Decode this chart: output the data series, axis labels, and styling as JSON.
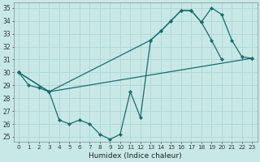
{
  "xlabel": "Humidex (Indice chaleur)",
  "bg_color": "#c8e8e8",
  "line_color": "#1a6b6b",
  "grid_color": "#b0d8d8",
  "line1_x": [
    0,
    1,
    2,
    3,
    4,
    5,
    6,
    7,
    8,
    9,
    10,
    11,
    12,
    13,
    14,
    15,
    16,
    17,
    18,
    19,
    20
  ],
  "line1_y": [
    30.0,
    29.0,
    28.8,
    28.5,
    26.3,
    26.0,
    26.3,
    26.0,
    25.2,
    24.8,
    25.2,
    28.5,
    26.5,
    32.5,
    33.2,
    34.0,
    34.8,
    34.8,
    33.9,
    32.5,
    31.0
  ],
  "line2_x": [
    0,
    3,
    13,
    14,
    15,
    16,
    17,
    18,
    19,
    20,
    21,
    22,
    23
  ],
  "line2_y": [
    30.0,
    28.5,
    32.5,
    33.2,
    34.0,
    34.8,
    34.8,
    33.9,
    35.0,
    34.5,
    32.5,
    31.2,
    31.1
  ],
  "line3_x": [
    0,
    3,
    23
  ],
  "line3_y": [
    30.0,
    28.5,
    31.1
  ],
  "ylim_min": 24.6,
  "ylim_max": 35.4,
  "xlim_min": -0.5,
  "xlim_max": 23.5,
  "yticks": [
    25,
    26,
    27,
    28,
    29,
    30,
    31,
    32,
    33,
    34,
    35
  ],
  "xticks": [
    0,
    1,
    2,
    3,
    4,
    5,
    6,
    7,
    8,
    9,
    10,
    11,
    12,
    13,
    14,
    15,
    16,
    17,
    18,
    19,
    20,
    21,
    22,
    23
  ]
}
